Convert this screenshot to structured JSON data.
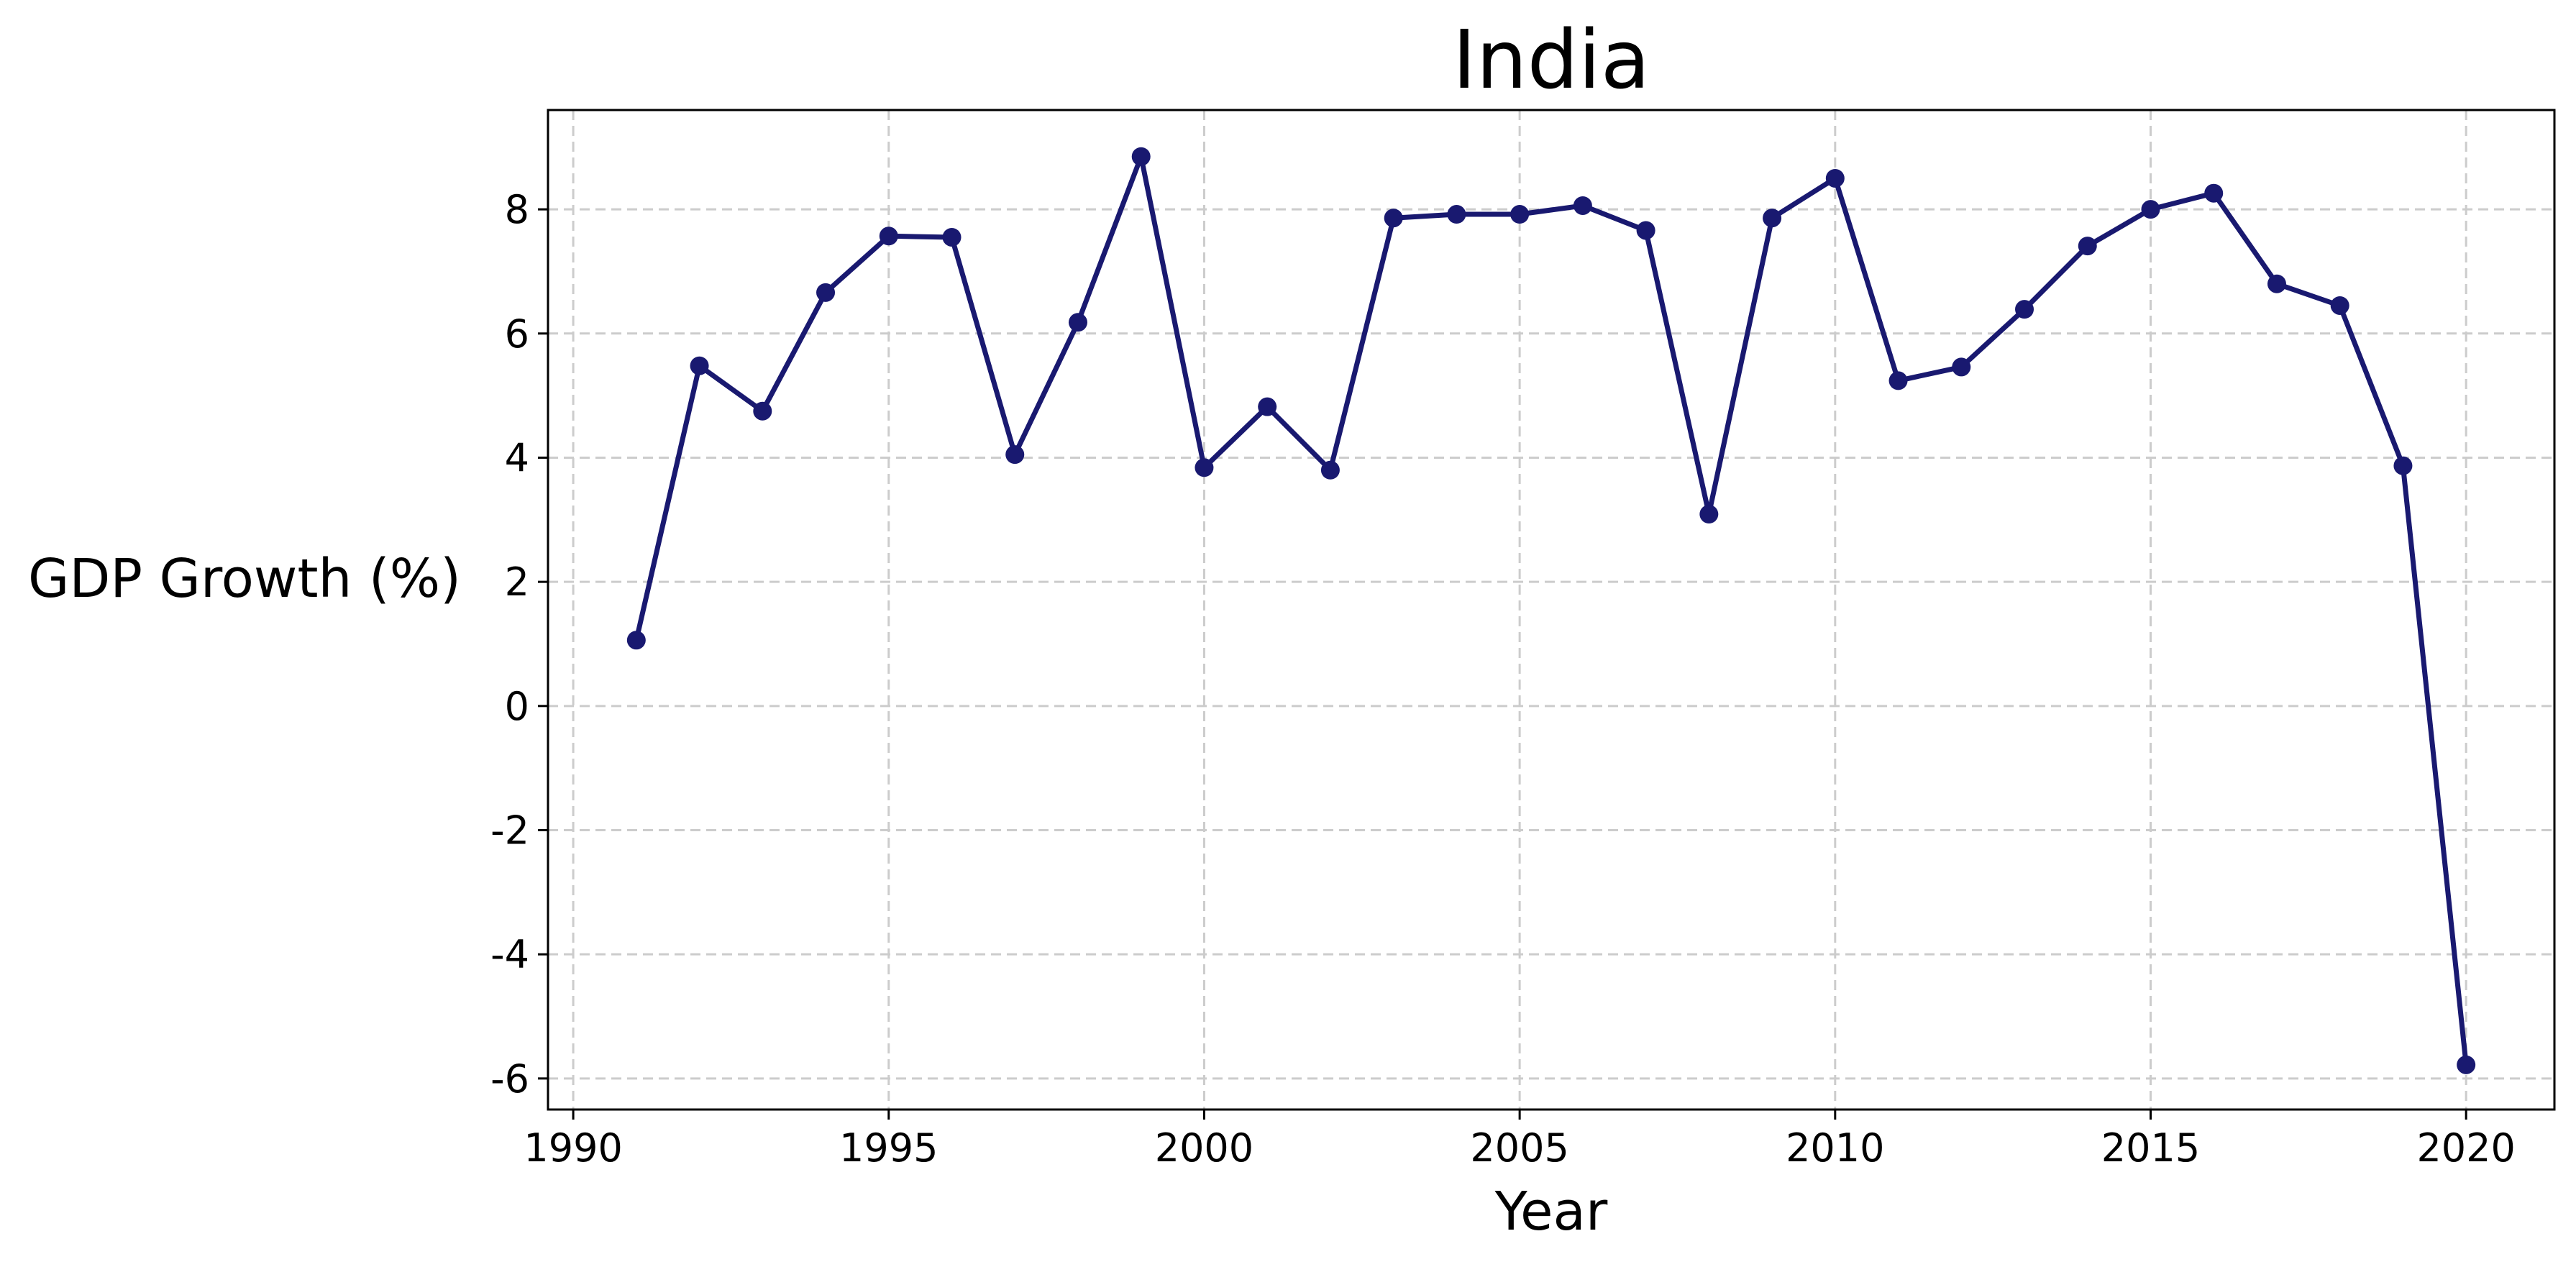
{
  "chart_data": {
    "type": "line",
    "title": "India",
    "xlabel": "Year",
    "ylabel": "GDP Growth (%)",
    "xlim": [
      1989.6,
      2021.4
    ],
    "ylim": [
      -6.5,
      9.6
    ],
    "x_ticks": [
      1990,
      1995,
      2000,
      2005,
      2010,
      2015,
      2020
    ],
    "y_ticks": [
      -6,
      -4,
      -2,
      0,
      2,
      4,
      6,
      8
    ],
    "grid": true,
    "line_color": "#191970",
    "series": [
      {
        "x": [
          1991,
          1992,
          1993,
          1994,
          1995,
          1996,
          1997,
          1998,
          1999,
          2000,
          2001,
          2002,
          2003,
          2004,
          2005,
          2006,
          2007,
          2008,
          2009,
          2010,
          2011,
          2012,
          2013,
          2014,
          2015,
          2016,
          2017,
          2018,
          2019,
          2020
        ],
        "values": [
          1.06,
          5.48,
          4.75,
          6.66,
          7.57,
          7.55,
          4.05,
          6.18,
          8.85,
          3.84,
          4.82,
          3.8,
          7.86,
          7.92,
          7.92,
          8.06,
          7.66,
          3.09,
          7.86,
          8.5,
          5.24,
          5.46,
          6.39,
          7.41,
          8.0,
          8.26,
          6.8,
          6.45,
          3.87,
          -5.78
        ]
      }
    ]
  }
}
